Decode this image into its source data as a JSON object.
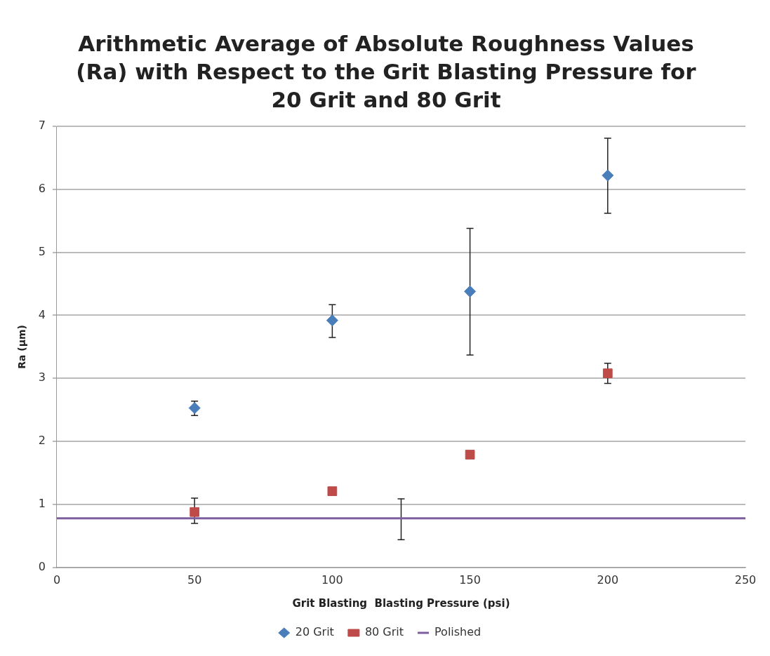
{
  "chart_data": {
    "type": "scatter",
    "title": "Arithmetic Average of Absolute Roughness Values (Ra) with Respect to the Grit Blasting Pressure for 20 Grit and 80 Grit",
    "xlabel": "Grit Blasting  Blasting Pressure (psi)",
    "ylabel": "Ra (µm)",
    "xlim": [
      0,
      250
    ],
    "xticks": [
      0,
      50,
      100,
      150,
      200,
      250
    ],
    "ylim": [
      0,
      7
    ],
    "yticks": [
      0,
      1,
      2,
      3,
      4,
      5,
      6,
      7
    ],
    "grid": "y",
    "legend": "bottom",
    "series": [
      {
        "name": "20 Grit",
        "type": "scatter",
        "marker": "diamond",
        "color": "#4a7ebb",
        "x": [
          50,
          100,
          150,
          200
        ],
        "values": [
          2.53,
          3.92,
          4.38,
          6.22
        ],
        "errors": [
          [
            2.41,
            2.64
          ],
          [
            3.65,
            4.17
          ],
          [
            3.37,
            5.38
          ],
          [
            5.62,
            6.81
          ]
        ]
      },
      {
        "name": "80 Grit",
        "type": "scatter",
        "marker": "square",
        "color": "#be4b48",
        "x": [
          50,
          100,
          150,
          200
        ],
        "values": [
          0.88,
          1.21,
          1.79,
          3.08
        ],
        "errors": [
          [
            0.7,
            1.1
          ],
          null,
          null,
          [
            2.92,
            3.24
          ]
        ]
      },
      {
        "name": "Polished",
        "type": "line",
        "marker": "none",
        "color": "#7d5fa0",
        "x": [
          0,
          125,
          250
        ],
        "values": [
          0.78,
          0.78,
          0.78
        ],
        "errors": [
          null,
          [
            0.44,
            1.09
          ],
          null
        ]
      }
    ]
  }
}
